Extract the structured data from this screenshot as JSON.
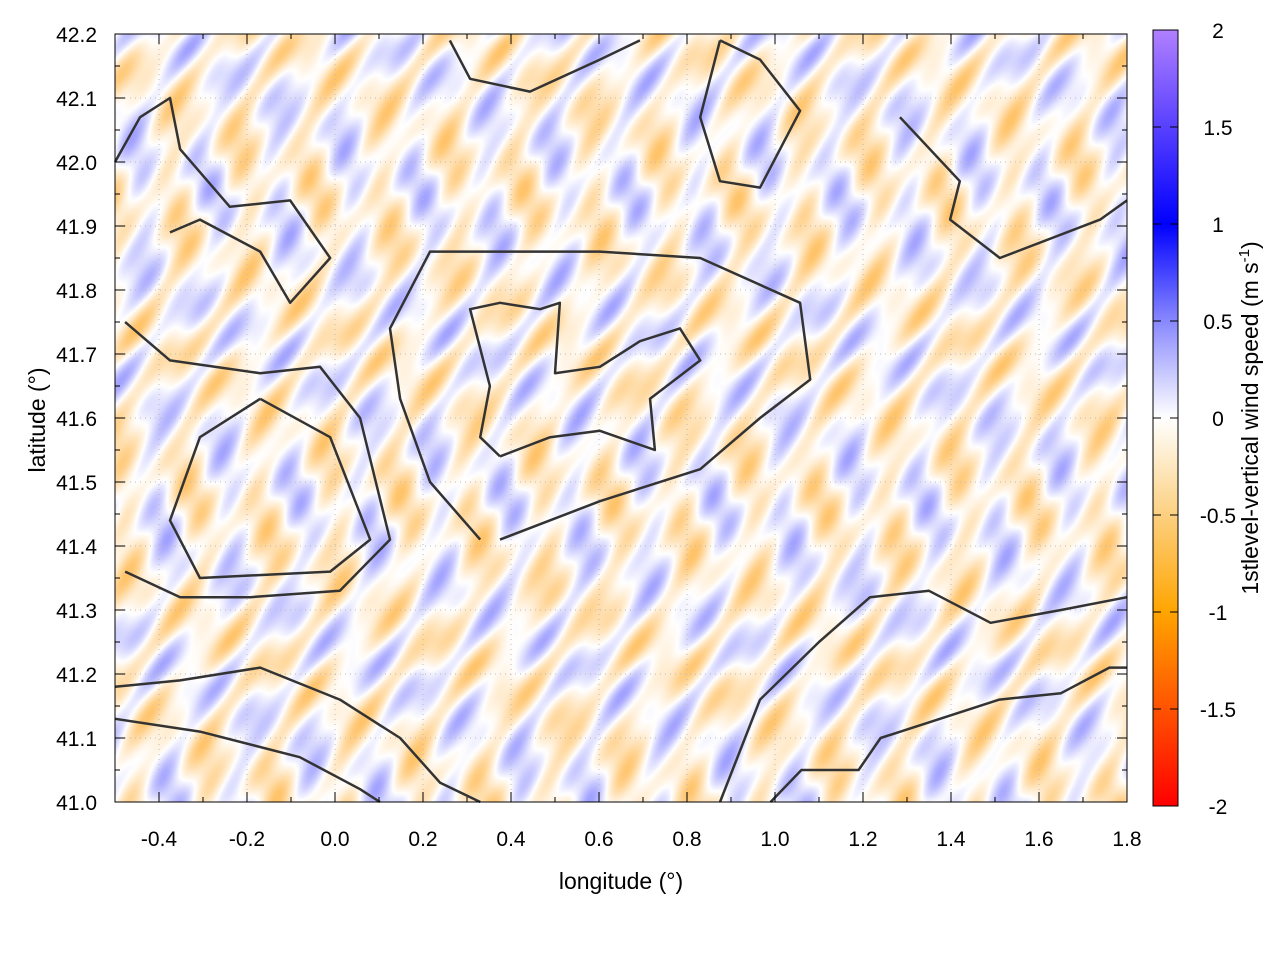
{
  "chart_data": {
    "type": "heatmap",
    "xlabel": "longitude (°)",
    "ylabel": "latitude (°)",
    "xlim": [
      -0.5,
      1.8
    ],
    "ylim": [
      41.0,
      42.2
    ],
    "x_ticks": [
      "-0.4",
      "-0.2",
      "0.0",
      "0.2",
      "0.4",
      "0.6",
      "0.8",
      "1.0",
      "1.2",
      "1.4",
      "1.6",
      "1.8"
    ],
    "x_tick_values": [
      -0.4,
      -0.2,
      0.0,
      0.2,
      0.4,
      0.6,
      0.8,
      1.0,
      1.2,
      1.4,
      1.6,
      1.8
    ],
    "y_ticks": [
      "41.0",
      "41.1",
      "41.2",
      "41.3",
      "41.4",
      "41.5",
      "41.6",
      "41.7",
      "41.8",
      "41.9",
      "42.0",
      "42.1",
      "42.2"
    ],
    "y_tick_values": [
      41.0,
      41.1,
      41.2,
      41.3,
      41.4,
      41.5,
      41.6,
      41.7,
      41.8,
      41.9,
      42.0,
      42.1,
      42.2
    ],
    "grid": true,
    "colorbar": {
      "label": "1stlevel-vertical wind speed (m s",
      "label_superscript": "-1",
      "label_close": ")",
      "range": [
        -2,
        2
      ],
      "ticks": [
        "2",
        "1.5",
        "1",
        "0.5",
        "0",
        "-0.5",
        "-1",
        "-1.5",
        "-2"
      ],
      "tick_values": [
        2,
        1.5,
        1,
        0.5,
        0,
        -0.5,
        -1,
        -1.5,
        -2
      ],
      "colors": [
        {
          "value": -2,
          "color": "#ff0000"
        },
        {
          "value": -1,
          "color": "#ffa500"
        },
        {
          "value": -0.5,
          "color": "#fcd080"
        },
        {
          "value": 0,
          "color": "#ffffff"
        },
        {
          "value": 0.5,
          "color": "#8888ff"
        },
        {
          "value": 1,
          "color": "#0000ff"
        },
        {
          "value": 2,
          "color": "#b080ff"
        }
      ],
      "placement": "right"
    },
    "field_note_values_range": [
      -0.6,
      0.6
    ],
    "contours": [
      [
        [
          0.99,
          41.0
        ],
        [
          1.06,
          41.05
        ],
        [
          1.19,
          41.05
        ],
        [
          1.24,
          41.1
        ],
        [
          1.375,
          41.13
        ],
        [
          1.51,
          41.16
        ],
        [
          1.65,
          41.17
        ],
        [
          1.76,
          41.21
        ],
        [
          1.8,
          41.21
        ]
      ],
      [
        [
          0.875,
          41.0
        ],
        [
          0.966,
          41.16
        ],
        [
          1.1,
          41.25
        ],
        [
          1.216,
          41.32
        ],
        [
          1.35,
          41.33
        ],
        [
          1.49,
          41.28
        ],
        [
          1.65,
          41.3
        ],
        [
          1.8,
          41.32
        ]
      ],
      [
        [
          0.375,
          41.54
        ],
        [
          0.33,
          41.57
        ],
        [
          0.352,
          41.65
        ],
        [
          0.307,
          41.77
        ],
        [
          0.375,
          41.78
        ],
        [
          0.466,
          41.77
        ],
        [
          0.511,
          41.78
        ],
        [
          0.5,
          41.67
        ],
        [
          0.602,
          41.68
        ],
        [
          0.693,
          41.72
        ],
        [
          0.784,
          41.74
        ],
        [
          0.83,
          41.69
        ],
        [
          0.716,
          41.63
        ],
        [
          0.727,
          41.55
        ],
        [
          0.602,
          41.58
        ],
        [
          0.489,
          41.57
        ],
        [
          0.375,
          41.54
        ]
      ],
      [
        [
          0.33,
          41.41
        ],
        [
          0.216,
          41.5
        ],
        [
          0.148,
          41.63
        ],
        [
          0.125,
          41.74
        ],
        [
          0.216,
          41.86
        ],
        [
          0.602,
          41.86
        ],
        [
          0.83,
          41.85
        ],
        [
          1.057,
          41.78
        ],
        [
          1.08,
          41.66
        ],
        [
          0.966,
          41.6
        ],
        [
          0.83,
          41.52
        ],
        [
          0.602,
          41.47
        ],
        [
          0.375,
          41.41
        ]
      ],
      [
        [
          -0.17,
          41.63
        ],
        [
          -0.011,
          41.57
        ],
        [
          0.08,
          41.41
        ],
        [
          -0.011,
          41.36
        ],
        [
          -0.307,
          41.35
        ],
        [
          -0.375,
          41.44
        ],
        [
          -0.307,
          41.57
        ],
        [
          -0.17,
          41.63
        ]
      ],
      [
        [
          -0.477,
          41.75
        ],
        [
          -0.375,
          41.69
        ],
        [
          -0.17,
          41.67
        ],
        [
          -0.034,
          41.68
        ],
        [
          0.057,
          41.6
        ],
        [
          0.125,
          41.41
        ],
        [
          0.011,
          41.33
        ],
        [
          -0.193,
          41.32
        ],
        [
          -0.352,
          41.32
        ],
        [
          -0.477,
          41.36
        ]
      ],
      [
        [
          -0.5,
          42.0
        ],
        [
          -0.443,
          42.07
        ],
        [
          -0.375,
          42.1
        ],
        [
          -0.352,
          42.02
        ],
        [
          -0.239,
          41.93
        ],
        [
          -0.102,
          41.94
        ],
        [
          -0.011,
          41.85
        ],
        [
          -0.102,
          41.78
        ],
        [
          -0.17,
          41.86
        ],
        [
          -0.307,
          41.91
        ],
        [
          -0.375,
          41.89
        ]
      ],
      [
        [
          0.261,
          42.19
        ],
        [
          0.307,
          42.13
        ],
        [
          0.443,
          42.11
        ],
        [
          0.602,
          42.16
        ],
        [
          0.693,
          42.19
        ]
      ],
      [
        [
          0.875,
          42.19
        ],
        [
          0.966,
          42.16
        ],
        [
          1.057,
          42.08
        ],
        [
          0.966,
          41.96
        ],
        [
          0.875,
          41.97
        ],
        [
          0.83,
          42.07
        ],
        [
          0.875,
          42.19
        ]
      ],
      [
        [
          1.284,
          42.07
        ],
        [
          1.42,
          41.97
        ],
        [
          1.398,
          41.91
        ],
        [
          1.511,
          41.85
        ],
        [
          1.739,
          41.91
        ],
        [
          1.8,
          41.94
        ]
      ],
      [
        [
          -0.5,
          41.18
        ],
        [
          -0.352,
          41.19
        ],
        [
          -0.17,
          41.21
        ],
        [
          0.011,
          41.16
        ],
        [
          0.148,
          41.1
        ],
        [
          0.239,
          41.03
        ],
        [
          0.33,
          41.0
        ]
      ],
      [
        [
          -0.5,
          41.13
        ],
        [
          -0.307,
          41.11
        ],
        [
          -0.08,
          41.07
        ],
        [
          0.057,
          41.02
        ],
        [
          0.102,
          41.0
        ]
      ]
    ]
  }
}
